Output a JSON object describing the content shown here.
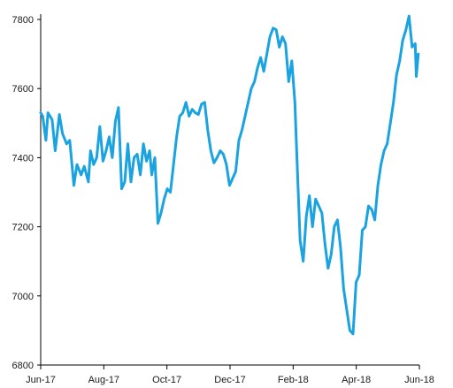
{
  "chart_data": {
    "type": "line",
    "title": "",
    "xlabel": "",
    "ylabel": "",
    "xlim": [
      "2017-06-01",
      "2018-06-01"
    ],
    "ylim": [
      6800,
      7800
    ],
    "x_ticks": [
      "Jun-17",
      "Aug-17",
      "Oct-17",
      "Dec-17",
      "Feb-18",
      "Apr-18",
      "Jun-18"
    ],
    "y_ticks": [
      6800,
      7000,
      7200,
      7400,
      7600,
      7800
    ],
    "grid": false,
    "legend": "none",
    "color": "#1aa3e0",
    "series": [
      {
        "points": [
          [
            "2017-06-01",
            7530
          ],
          [
            "2017-06-03",
            7520
          ],
          [
            "2017-06-06",
            7450
          ],
          [
            "2017-06-08",
            7530
          ],
          [
            "2017-06-12",
            7510
          ],
          [
            "2017-06-15",
            7420
          ],
          [
            "2017-06-19",
            7525
          ],
          [
            "2017-06-22",
            7470
          ],
          [
            "2017-06-26",
            7440
          ],
          [
            "2017-06-29",
            7450
          ],
          [
            "2017-07-03",
            7320
          ],
          [
            "2017-07-06",
            7380
          ],
          [
            "2017-07-10",
            7350
          ],
          [
            "2017-07-13",
            7375
          ],
          [
            "2017-07-17",
            7330
          ],
          [
            "2017-07-19",
            7420
          ],
          [
            "2017-07-22",
            7380
          ],
          [
            "2017-07-25",
            7400
          ],
          [
            "2017-07-28",
            7490
          ],
          [
            "2017-07-31",
            7390
          ],
          [
            "2017-08-03",
            7420
          ],
          [
            "2017-08-06",
            7460
          ],
          [
            "2017-08-09",
            7400
          ],
          [
            "2017-08-12",
            7505
          ],
          [
            "2017-08-15",
            7545
          ],
          [
            "2017-08-18",
            7310
          ],
          [
            "2017-08-21",
            7330
          ],
          [
            "2017-08-24",
            7440
          ],
          [
            "2017-08-27",
            7330
          ],
          [
            "2017-08-30",
            7400
          ],
          [
            "2017-09-02",
            7410
          ],
          [
            "2017-09-05",
            7350
          ],
          [
            "2017-09-08",
            7440
          ],
          [
            "2017-09-11",
            7390
          ],
          [
            "2017-09-14",
            7420
          ],
          [
            "2017-09-16",
            7350
          ],
          [
            "2017-09-19",
            7400
          ],
          [
            "2017-09-22",
            7210
          ],
          [
            "2017-09-25",
            7240
          ],
          [
            "2017-09-28",
            7280
          ],
          [
            "2017-10-01",
            7310
          ],
          [
            "2017-10-04",
            7300
          ],
          [
            "2017-10-07",
            7380
          ],
          [
            "2017-10-10",
            7460
          ],
          [
            "2017-10-13",
            7520
          ],
          [
            "2017-10-16",
            7530
          ],
          [
            "2017-10-19",
            7560
          ],
          [
            "2017-10-22",
            7520
          ],
          [
            "2017-10-25",
            7540
          ],
          [
            "2017-10-28",
            7530
          ],
          [
            "2017-10-31",
            7525
          ],
          [
            "2017-11-03",
            7555
          ],
          [
            "2017-11-06",
            7560
          ],
          [
            "2017-11-09",
            7480
          ],
          [
            "2017-11-12",
            7420
          ],
          [
            "2017-11-15",
            7385
          ],
          [
            "2017-11-18",
            7400
          ],
          [
            "2017-11-21",
            7420
          ],
          [
            "2017-11-24",
            7410
          ],
          [
            "2017-11-27",
            7380
          ],
          [
            "2017-11-30",
            7320
          ],
          [
            "2017-12-03",
            7340
          ],
          [
            "2017-12-06",
            7360
          ],
          [
            "2017-12-09",
            7450
          ],
          [
            "2017-12-12",
            7480
          ],
          [
            "2017-12-15",
            7520
          ],
          [
            "2017-12-18",
            7560
          ],
          [
            "2017-12-21",
            7600
          ],
          [
            "2017-12-24",
            7620
          ],
          [
            "2017-12-27",
            7660
          ],
          [
            "2017-12-30",
            7690
          ],
          [
            "2018-01-02",
            7650
          ],
          [
            "2018-01-05",
            7700
          ],
          [
            "2018-01-08",
            7750
          ],
          [
            "2018-01-11",
            7775
          ],
          [
            "2018-01-14",
            7770
          ],
          [
            "2018-01-17",
            7720
          ],
          [
            "2018-01-20",
            7750
          ],
          [
            "2018-01-23",
            7730
          ],
          [
            "2018-01-26",
            7620
          ],
          [
            "2018-01-29",
            7680
          ],
          [
            "2018-02-01",
            7560
          ],
          [
            "2018-02-03",
            7400
          ],
          [
            "2018-02-06",
            7160
          ],
          [
            "2018-02-09",
            7100
          ],
          [
            "2018-02-12",
            7230
          ],
          [
            "2018-02-15",
            7290
          ],
          [
            "2018-02-18",
            7200
          ],
          [
            "2018-02-21",
            7280
          ],
          [
            "2018-02-24",
            7260
          ],
          [
            "2018-02-27",
            7240
          ],
          [
            "2018-03-02",
            7150
          ],
          [
            "2018-03-05",
            7080
          ],
          [
            "2018-03-08",
            7120
          ],
          [
            "2018-03-11",
            7200
          ],
          [
            "2018-03-14",
            7220
          ],
          [
            "2018-03-17",
            7140
          ],
          [
            "2018-03-20",
            7020
          ],
          [
            "2018-03-23",
            6960
          ],
          [
            "2018-03-26",
            6900
          ],
          [
            "2018-03-29",
            6890
          ],
          [
            "2018-04-01",
            7040
          ],
          [
            "2018-04-04",
            7060
          ],
          [
            "2018-04-07",
            7190
          ],
          [
            "2018-04-10",
            7200
          ],
          [
            "2018-04-13",
            7260
          ],
          [
            "2018-04-16",
            7250
          ],
          [
            "2018-04-19",
            7220
          ],
          [
            "2018-04-22",
            7320
          ],
          [
            "2018-04-25",
            7380
          ],
          [
            "2018-04-28",
            7420
          ],
          [
            "2018-05-01",
            7440
          ],
          [
            "2018-05-04",
            7500
          ],
          [
            "2018-05-07",
            7560
          ],
          [
            "2018-05-10",
            7640
          ],
          [
            "2018-05-13",
            7680
          ],
          [
            "2018-05-16",
            7740
          ],
          [
            "2018-05-19",
            7770
          ],
          [
            "2018-05-22",
            7810
          ],
          [
            "2018-05-25",
            7720
          ],
          [
            "2018-05-28",
            7730
          ],
          [
            "2018-05-29",
            7635
          ],
          [
            "2018-05-31",
            7700
          ]
        ]
      }
    ]
  }
}
